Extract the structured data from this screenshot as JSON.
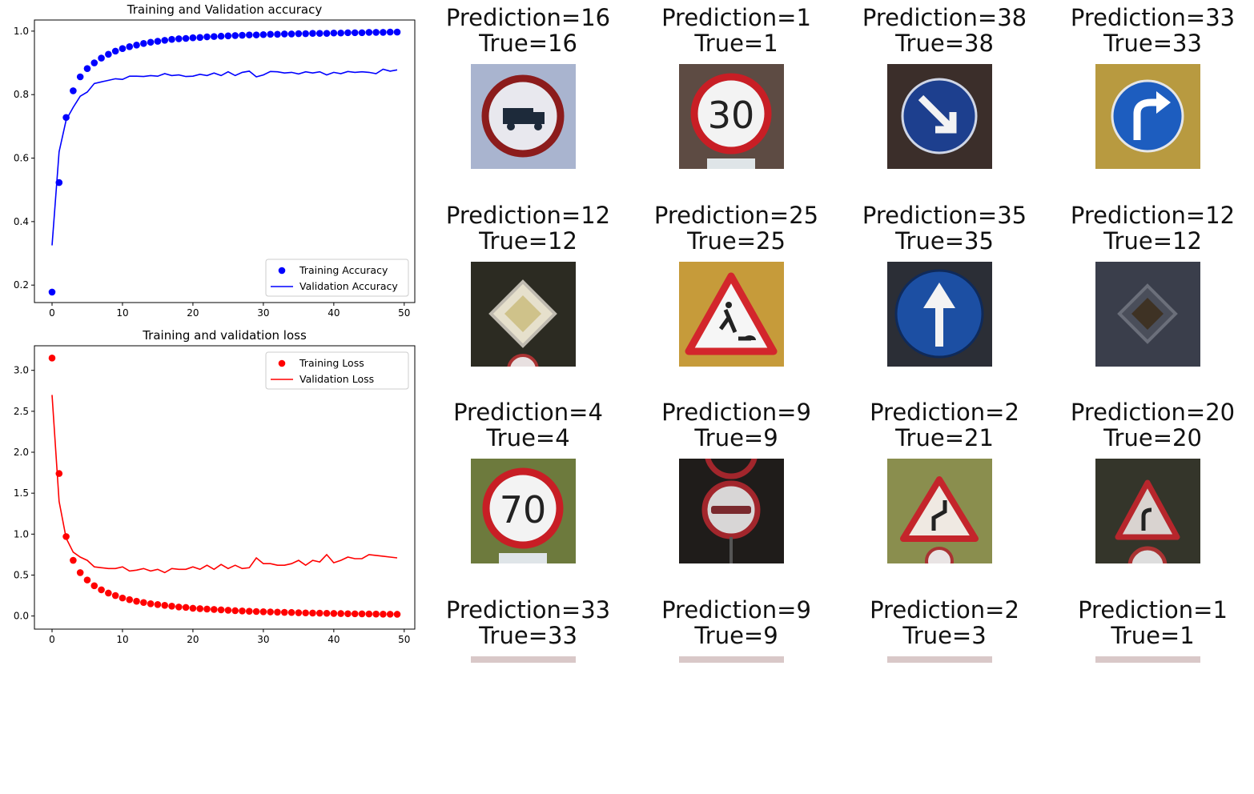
{
  "chart_data": [
    {
      "type": "line",
      "title": "Training and Validation accuracy",
      "xlabel": "",
      "ylabel": "",
      "xlim": [
        -2.5,
        51.5
      ],
      "ylim": [
        0.145,
        1.035
      ],
      "xticks": [
        0,
        10,
        20,
        30,
        40,
        50
      ],
      "xtick_labels": [
        "0",
        "10",
        "20",
        "30",
        "40",
        "50"
      ],
      "yticks": [
        0.2,
        0.4,
        0.6,
        0.8,
        1.0
      ],
      "ytick_labels": [
        "0.2",
        "0.4",
        "0.6",
        "0.8",
        "1.0"
      ],
      "grid": false,
      "legend_position": "lower right",
      "color_train": "#0000ff",
      "color_val": "#0000ff",
      "series": [
        {
          "name": "Training Accuracy",
          "style": "dots",
          "x": [
            0,
            1,
            2,
            3,
            4,
            5,
            6,
            7,
            8,
            9,
            10,
            11,
            12,
            13,
            14,
            15,
            16,
            17,
            18,
            19,
            20,
            21,
            22,
            23,
            24,
            25,
            26,
            27,
            28,
            29,
            30,
            31,
            32,
            33,
            34,
            35,
            36,
            37,
            38,
            39,
            40,
            41,
            42,
            43,
            44,
            45,
            46,
            47,
            48,
            49
          ],
          "values": [
            0.178,
            0.523,
            0.728,
            0.812,
            0.856,
            0.882,
            0.9,
            0.915,
            0.927,
            0.937,
            0.945,
            0.951,
            0.956,
            0.961,
            0.965,
            0.968,
            0.971,
            0.974,
            0.976,
            0.977,
            0.979,
            0.98,
            0.982,
            0.983,
            0.984,
            0.985,
            0.986,
            0.987,
            0.988,
            0.988,
            0.989,
            0.99,
            0.99,
            0.991,
            0.991,
            0.992,
            0.992,
            0.993,
            0.993,
            0.993,
            0.994,
            0.994,
            0.995,
            0.995,
            0.995,
            0.996,
            0.996,
            0.996,
            0.997,
            0.997
          ]
        },
        {
          "name": "Validation Accuracy",
          "style": "line",
          "x": [
            0,
            1,
            2,
            3,
            4,
            5,
            6,
            7,
            8,
            9,
            10,
            11,
            12,
            13,
            14,
            15,
            16,
            17,
            18,
            19,
            20,
            21,
            22,
            23,
            24,
            25,
            26,
            27,
            28,
            29,
            30,
            31,
            32,
            33,
            34,
            35,
            36,
            37,
            38,
            39,
            40,
            41,
            42,
            43,
            44,
            45,
            46,
            47,
            48,
            49
          ],
          "values": [
            0.325,
            0.62,
            0.72,
            0.76,
            0.795,
            0.808,
            0.835,
            0.84,
            0.845,
            0.85,
            0.848,
            0.858,
            0.858,
            0.857,
            0.86,
            0.858,
            0.866,
            0.86,
            0.862,
            0.857,
            0.858,
            0.864,
            0.86,
            0.868,
            0.86,
            0.872,
            0.86,
            0.87,
            0.874,
            0.856,
            0.862,
            0.873,
            0.872,
            0.868,
            0.87,
            0.865,
            0.872,
            0.868,
            0.872,
            0.862,
            0.87,
            0.866,
            0.873,
            0.87,
            0.872,
            0.87,
            0.866,
            0.88,
            0.874,
            0.878
          ]
        }
      ]
    },
    {
      "type": "line",
      "title": "Training and validation loss",
      "xlabel": "",
      "ylabel": "",
      "xlim": [
        -2.5,
        51.5
      ],
      "ylim": [
        -0.16,
        3.3
      ],
      "xticks": [
        0,
        10,
        20,
        30,
        40,
        50
      ],
      "xtick_labels": [
        "0",
        "10",
        "20",
        "30",
        "40",
        "50"
      ],
      "yticks": [
        0.0,
        0.5,
        1.0,
        1.5,
        2.0,
        2.5,
        3.0
      ],
      "ytick_labels": [
        "0.0",
        "0.5",
        "1.0",
        "1.5",
        "2.0",
        "2.5",
        "3.0"
      ],
      "grid": false,
      "legend_position": "upper right",
      "color_train": "#ff0000",
      "color_val": "#ff0000",
      "series": [
        {
          "name": "Training Loss",
          "style": "dots",
          "x": [
            0,
            1,
            2,
            3,
            4,
            5,
            6,
            7,
            8,
            9,
            10,
            11,
            12,
            13,
            14,
            15,
            16,
            17,
            18,
            19,
            20,
            21,
            22,
            23,
            24,
            25,
            26,
            27,
            28,
            29,
            30,
            31,
            32,
            33,
            34,
            35,
            36,
            37,
            38,
            39,
            40,
            41,
            42,
            43,
            44,
            45,
            46,
            47,
            48,
            49
          ],
          "values": [
            3.15,
            1.74,
            0.97,
            0.68,
            0.53,
            0.44,
            0.37,
            0.32,
            0.28,
            0.25,
            0.22,
            0.2,
            0.18,
            0.165,
            0.15,
            0.14,
            0.13,
            0.12,
            0.11,
            0.105,
            0.095,
            0.09,
            0.085,
            0.08,
            0.075,
            0.07,
            0.065,
            0.062,
            0.058,
            0.055,
            0.052,
            0.05,
            0.047,
            0.045,
            0.043,
            0.04,
            0.038,
            0.036,
            0.035,
            0.033,
            0.031,
            0.03,
            0.028,
            0.027,
            0.026,
            0.025,
            0.024,
            0.023,
            0.022,
            0.021
          ]
        },
        {
          "name": "Validation Loss",
          "style": "line",
          "x": [
            0,
            1,
            2,
            3,
            4,
            5,
            6,
            7,
            8,
            9,
            10,
            11,
            12,
            13,
            14,
            15,
            16,
            17,
            18,
            19,
            20,
            21,
            22,
            23,
            24,
            25,
            26,
            27,
            28,
            29,
            30,
            31,
            32,
            33,
            34,
            35,
            36,
            37,
            38,
            39,
            40,
            41,
            42,
            43,
            44,
            45,
            46,
            47,
            48,
            49
          ],
          "values": [
            2.7,
            1.4,
            0.95,
            0.78,
            0.72,
            0.68,
            0.6,
            0.59,
            0.58,
            0.58,
            0.6,
            0.55,
            0.56,
            0.58,
            0.55,
            0.57,
            0.53,
            0.58,
            0.57,
            0.57,
            0.6,
            0.57,
            0.62,
            0.57,
            0.63,
            0.58,
            0.62,
            0.58,
            0.59,
            0.71,
            0.64,
            0.64,
            0.62,
            0.62,
            0.64,
            0.68,
            0.62,
            0.68,
            0.66,
            0.75,
            0.65,
            0.68,
            0.72,
            0.7,
            0.7,
            0.75,
            0.74,
            0.73,
            0.72,
            0.71
          ]
        }
      ]
    }
  ],
  "predictions": [
    {
      "prediction": "Prediction=16",
      "true": "True=16",
      "sign": "no-trucks-sign-icon"
    },
    {
      "prediction": "Prediction=1",
      "true": "True=1",
      "sign": "speed-limit-30-sign-icon",
      "sign_text": "30"
    },
    {
      "prediction": "Prediction=38",
      "true": "True=38",
      "sign": "keep-right-sign-icon"
    },
    {
      "prediction": "Prediction=33",
      "true": "True=33",
      "sign": "turn-right-ahead-sign-icon"
    },
    {
      "prediction": "Prediction=12",
      "true": "True=12",
      "sign": "priority-road-sign-icon"
    },
    {
      "prediction": "Prediction=25",
      "true": "True=25",
      "sign": "road-work-sign-icon"
    },
    {
      "prediction": "Prediction=35",
      "true": "True=35",
      "sign": "ahead-only-sign-icon"
    },
    {
      "prediction": "Prediction=12",
      "true": "True=12",
      "sign": "priority-road-dark-sign-icon"
    },
    {
      "prediction": "Prediction=4",
      "true": "True=4",
      "sign": "speed-limit-70-sign-icon",
      "sign_text": "70"
    },
    {
      "prediction": "Prediction=9",
      "true": "True=9",
      "sign": "no-overtaking-sign-icon"
    },
    {
      "prediction": "Prediction=2",
      "true": "True=21",
      "sign": "double-curve-sign-icon"
    },
    {
      "prediction": "Prediction=20",
      "true": "True=20",
      "sign": "curve-right-sign-icon"
    },
    {
      "prediction": "Prediction=33",
      "true": "True=33",
      "sign": "cropped-sign-icon"
    },
    {
      "prediction": "Prediction=9",
      "true": "True=9",
      "sign": "cropped-sign-icon"
    },
    {
      "prediction": "Prediction=2",
      "true": "True=3",
      "sign": "cropped-sign-icon"
    },
    {
      "prediction": "Prediction=1",
      "true": "True=1",
      "sign": "cropped-sign-icon"
    }
  ]
}
